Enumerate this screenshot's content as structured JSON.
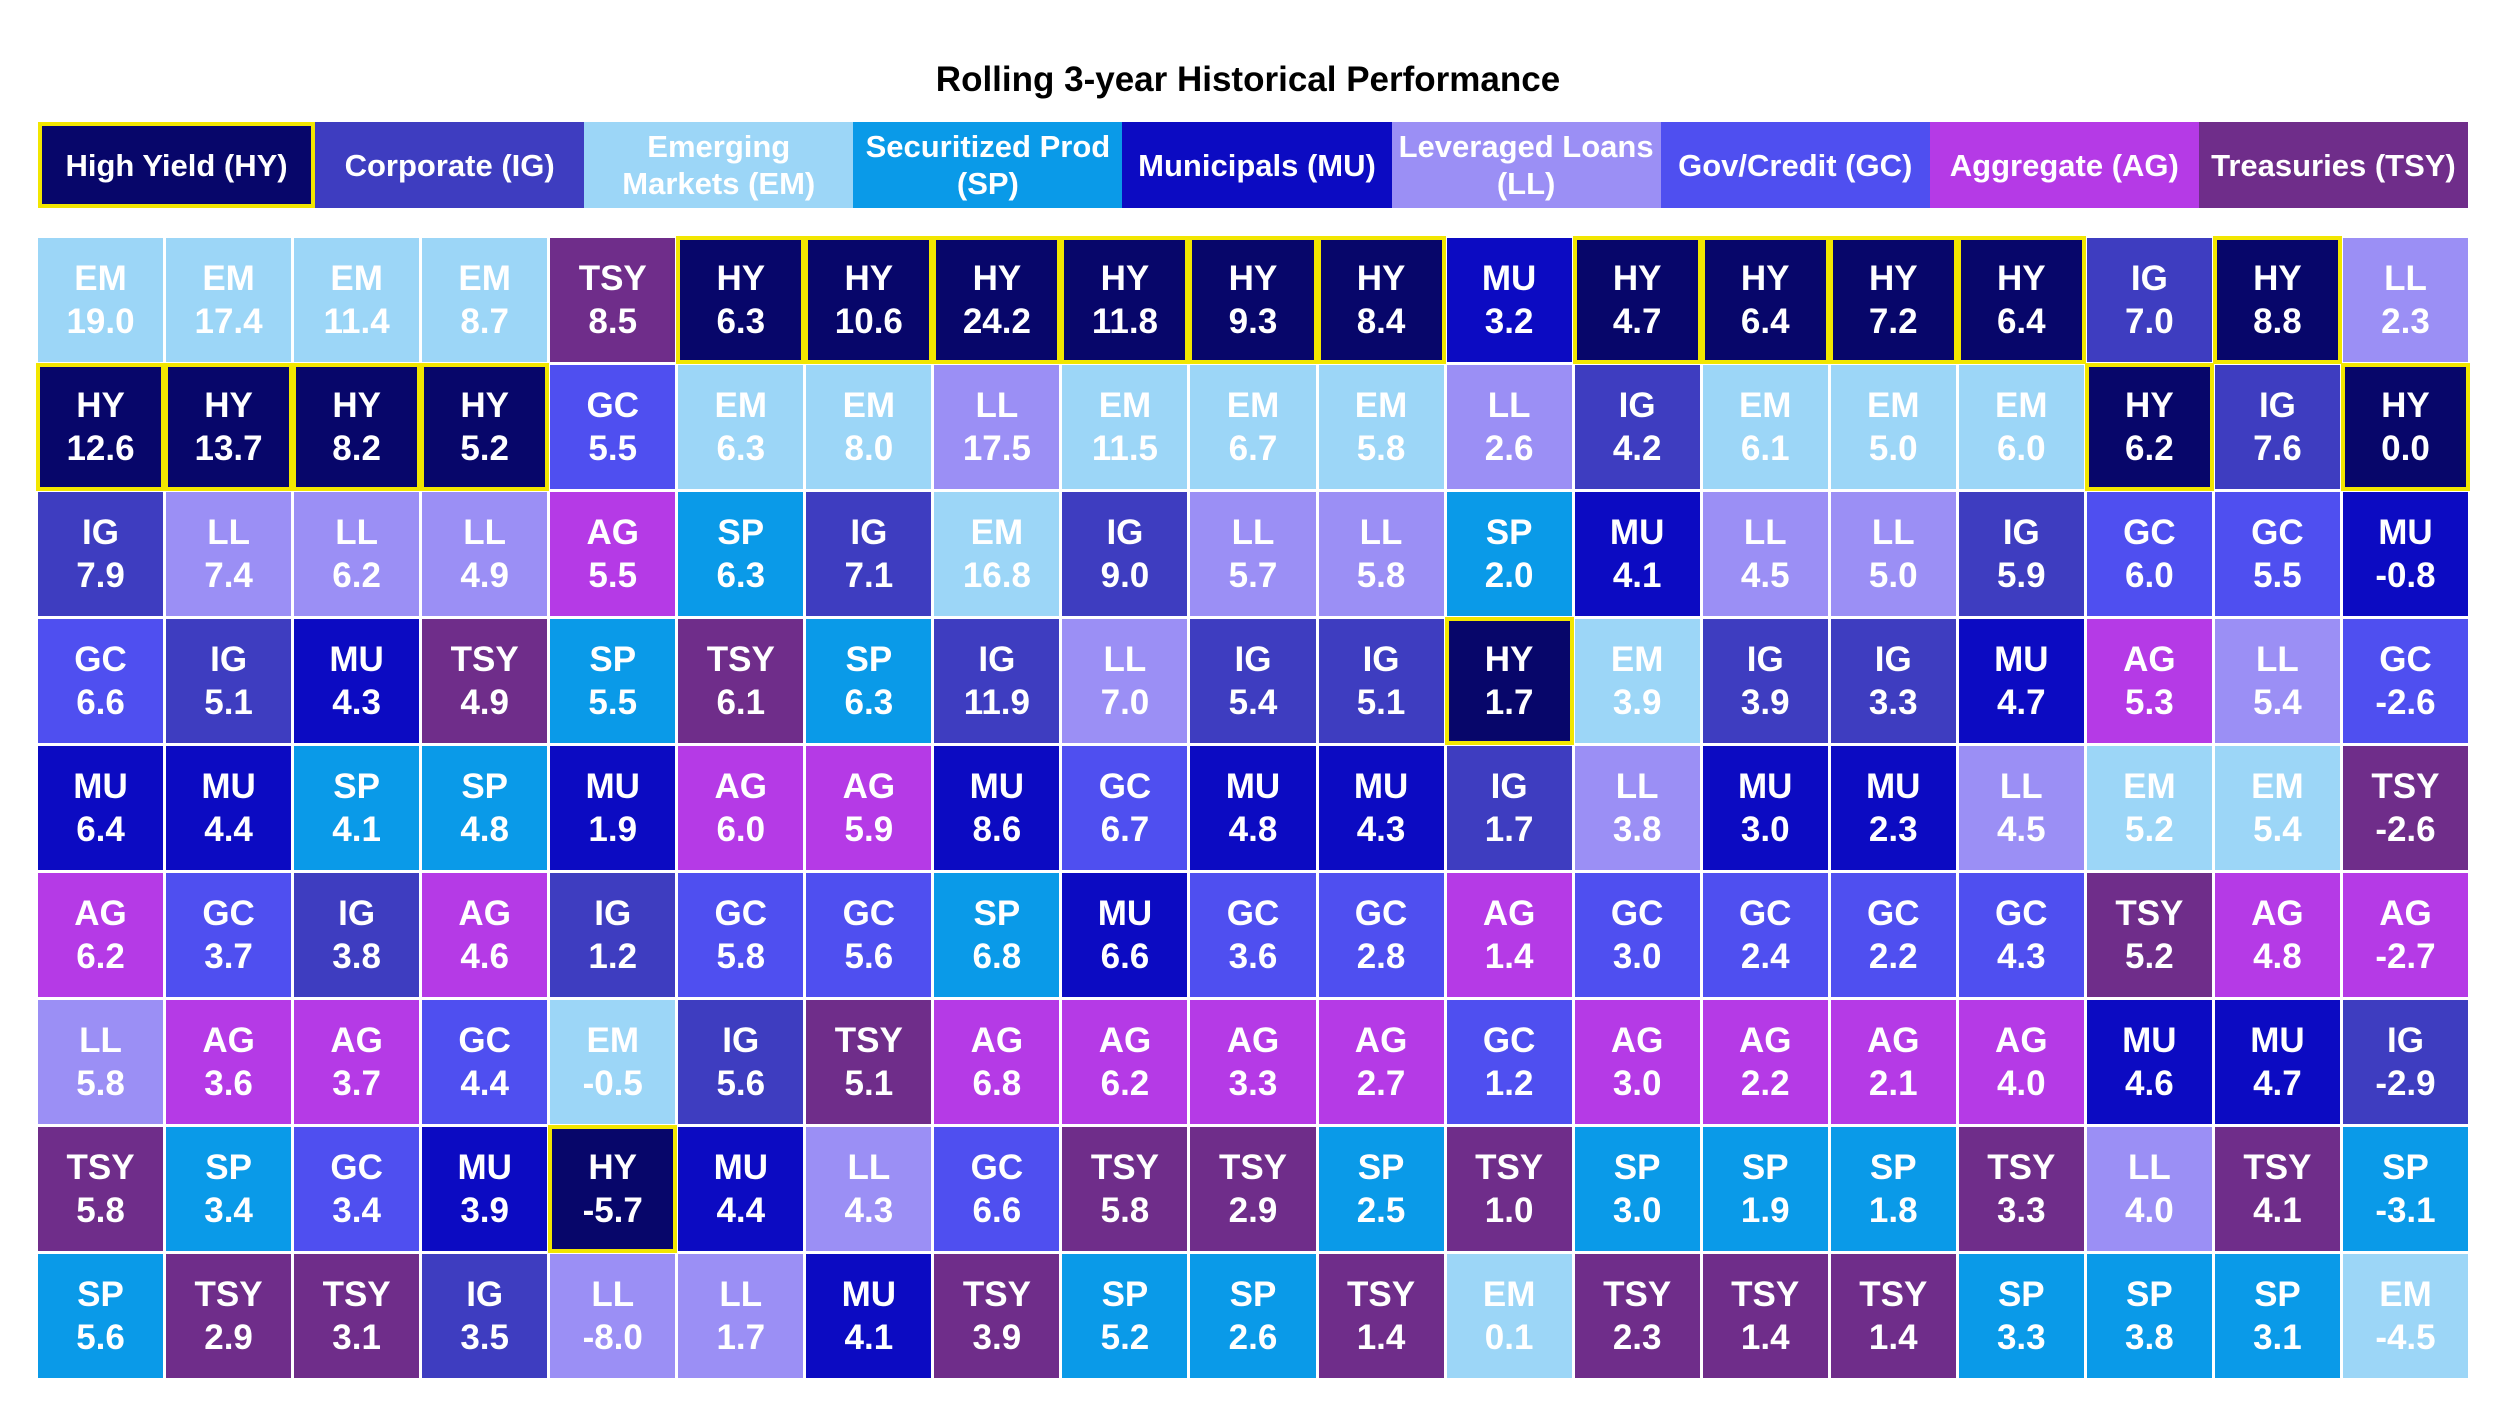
{
  "chart_data": {
    "type": "table",
    "title": "Rolling 3-year Historical Performance",
    "legend": [
      {
        "code": "HY",
        "label": "High Yield (HY)",
        "color": "#07066a",
        "text_color": "#ffffff",
        "highlight": true
      },
      {
        "code": "IG",
        "label": "Corporate (IG)",
        "color": "#3e3dc0",
        "text_color": "#ffffff",
        "highlight": false
      },
      {
        "code": "EM",
        "label": "Emerging Markets (EM)",
        "color": "#9cd6f7",
        "text_color": "#ffffff",
        "highlight": false
      },
      {
        "code": "SP",
        "label": "Securitized Prod (SP)",
        "color": "#0a9ae8",
        "text_color": "#ffffff",
        "highlight": false
      },
      {
        "code": "MU",
        "label": "Municipals (MU)",
        "color": "#0c0bc2",
        "text_color": "#ffffff",
        "highlight": false
      },
      {
        "code": "LL",
        "label": "Leveraged Loans (LL)",
        "color": "#9b8ff5",
        "text_color": "#ffffff",
        "highlight": false
      },
      {
        "code": "GC",
        "label": "Gov/Credit (GC)",
        "color": "#4f4ff0",
        "text_color": "#ffffff",
        "highlight": false
      },
      {
        "code": "AG",
        "label": "Aggregate (AG)",
        "color": "#b53ae6",
        "text_color": "#ffffff",
        "highlight": false
      },
      {
        "code": "TSY",
        "label": "Treasuries (TSY)",
        "color": "#6f2d8a",
        "text_color": "#ffffff",
        "highlight": false
      }
    ],
    "rank_columns": [
      [
        "EM 19.0",
        "HY 12.6",
        "IG 7.9",
        "GC 6.6",
        "MU 6.4",
        "AG 6.2",
        "LL 5.8",
        "TSY 5.8",
        "SP 5.6"
      ],
      [
        "EM 17.4",
        "HY 13.7",
        "LL 7.4",
        "IG 5.1",
        "MU 4.4",
        "GC 3.7",
        "AG 3.6",
        "SP 3.4",
        "TSY 2.9"
      ],
      [
        "EM 11.4",
        "HY 8.2",
        "LL 6.2",
        "MU 4.3",
        "SP 4.1",
        "IG 3.8",
        "AG 3.7",
        "GC 3.4",
        "TSY 3.1"
      ],
      [
        "EM 8.7",
        "HY 5.2",
        "LL 4.9",
        "TSY 4.9",
        "SP 4.8",
        "AG 4.6",
        "GC 4.4",
        "MU 3.9",
        "IG 3.5"
      ],
      [
        "TSY 8.5",
        "GC 5.5",
        "AG 5.5",
        "SP 5.5",
        "MU 1.9",
        "IG 1.2",
        "EM -0.5",
        "HY -5.7",
        "LL -8.0"
      ],
      [
        "HY 6.3",
        "EM 6.3",
        "SP 6.3",
        "TSY 6.1",
        "AG 6.0",
        "GC 5.8",
        "IG 5.6",
        "MU 4.4",
        "LL 1.7"
      ],
      [
        "HY 10.6",
        "EM 8.0",
        "IG 7.1",
        "SP 6.3",
        "AG 5.9",
        "GC 5.6",
        "TSY 5.1",
        "LL 4.3",
        "MU 4.1"
      ],
      [
        "HY 24.2",
        "LL 17.5",
        "EM 16.8",
        "IG 11.9",
        "MU 8.6",
        "SP 6.8",
        "AG 6.8",
        "GC 6.6",
        "TSY 3.9"
      ],
      [
        "HY 11.8",
        "EM 11.5",
        "IG 9.0",
        "LL 7.0",
        "GC 6.7",
        "MU 6.6",
        "AG 6.2",
        "TSY 5.8",
        "SP 5.2"
      ],
      [
        "HY 9.3",
        "EM 6.7",
        "LL 5.7",
        "IG 5.4",
        "MU 4.8",
        "GC 3.6",
        "AG 3.3",
        "TSY 2.9",
        "SP 2.6"
      ],
      [
        "HY 8.4",
        "EM 5.8",
        "LL 5.8",
        "IG 5.1",
        "MU 4.3",
        "GC 2.8",
        "AG 2.7",
        "SP 2.5",
        "TSY 1.4"
      ],
      [
        "MU 3.2",
        "LL 2.6",
        "SP 2.0",
        "HY 1.7",
        "IG 1.7",
        "AG 1.4",
        "GC 1.2",
        "TSY 1.0",
        "EM 0.1"
      ],
      [
        "HY 4.7",
        "IG 4.2",
        "MU 4.1",
        "EM 3.9",
        "LL 3.8",
        "GC 3.0",
        "AG 3.0",
        "SP 3.0",
        "TSY 2.3"
      ],
      [
        "HY 6.4",
        "EM 6.1",
        "LL 4.5",
        "IG 3.9",
        "MU 3.0",
        "GC 2.4",
        "AG 2.2",
        "SP 1.9",
        "TSY 1.4"
      ],
      [
        "HY 7.2",
        "EM 5.0",
        "LL 5.0",
        "IG 3.3",
        "MU 2.3",
        "GC 2.2",
        "AG 2.1",
        "SP 1.8",
        "TSY 1.4"
      ],
      [
        "HY 6.4",
        "EM 6.0",
        "IG 5.9",
        "MU 4.7",
        "LL 4.5",
        "GC 4.3",
        "AG 4.0",
        "TSY 3.3",
        "SP 3.3"
      ],
      [
        "IG 7.0",
        "HY 6.2",
        "GC 6.0",
        "AG 5.3",
        "EM 5.2",
        "TSY 5.2",
        "MU 4.6",
        "LL 4.0",
        "SP 3.8"
      ],
      [
        "HY 8.8",
        "IG 7.6",
        "GC 5.5",
        "LL 5.4",
        "EM 5.4",
        "AG 4.8",
        "MU 4.7",
        "TSY 4.1",
        "SP 3.1"
      ],
      [
        "LL 2.3",
        "HY 0.0",
        "MU -0.8",
        "GC -2.6",
        "TSY -2.6",
        "AG -2.7",
        "IG -2.9",
        "SP -3.1",
        "EM -4.5"
      ]
    ]
  }
}
